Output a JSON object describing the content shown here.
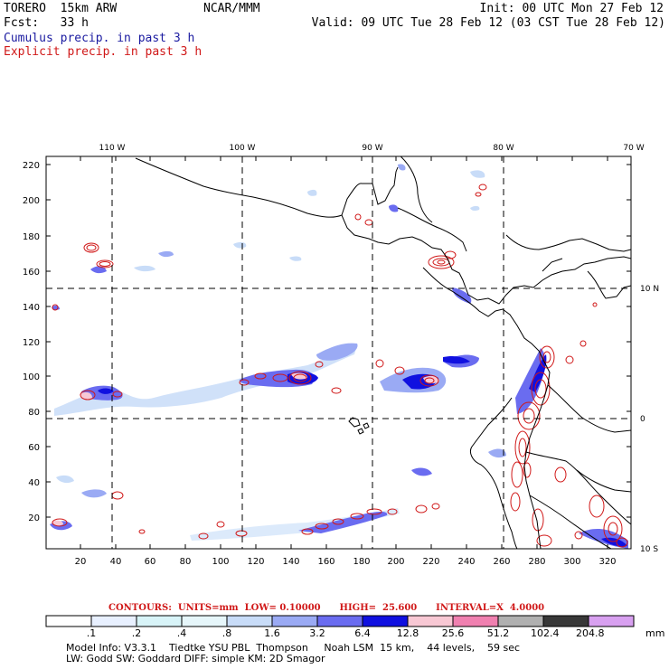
{
  "header": {
    "run_name": "TORERO  15km ARW",
    "org": "NCAR/MMM",
    "init": "Init: 00 UTC Mon 27 Feb 12",
    "fcst": "Fcst:   33 h",
    "valid": "Valid: 09 UTC Tue 28 Feb 12 (03 CST Tue 28 Feb 12)",
    "field1": "Cumulus precip. in past 3 h",
    "field2": "Explicit precip. in past 3 h"
  },
  "colors": {
    "cumulus": "#1a1aa0",
    "explicit": "#d01818",
    "coast": "#000000",
    "grid": "#000000"
  },
  "axes": {
    "x_ticks": [
      "20",
      "40",
      "60",
      "80",
      "100",
      "120",
      "140",
      "160",
      "180",
      "200",
      "220",
      "240",
      "260",
      "280",
      "300",
      "320"
    ],
    "y_ticks": [
      "20",
      "40",
      "60",
      "80",
      "100",
      "120",
      "140",
      "160",
      "180",
      "200",
      "220"
    ],
    "lon_labels": [
      "110 W",
      "100 W",
      "90 W",
      "80 W",
      "70 W"
    ],
    "lat_labels": [
      "10 N",
      "0",
      "10 S"
    ]
  },
  "contours": {
    "text": "CONTOURS:  UNITS=mm  LOW= 0.10000      HIGH=  25.600      INTERVAL=X  4.0000"
  },
  "colorbar": {
    "levels": [
      ".1",
      ".2",
      ".4",
      ".8",
      "1.6",
      "3.2",
      "6.4",
      "12.8",
      "25.6",
      "51.2",
      "102.4",
      "204.8"
    ],
    "colors": [
      "#ffffff",
      "#e8f0ff",
      "#d8f4f8",
      "#e6f6fa",
      "#c8dcf8",
      "#9aaaf4",
      "#6a6cf0",
      "#1010e0",
      "#f8c8d4",
      "#f080b0",
      "#b0b0b0",
      "#383838",
      "#d8a0f0"
    ],
    "unit": "mm"
  },
  "model_info": {
    "line1": "Model Info: V3.3.1    Tiedtke YSU PBL  Thompson     Noah LSM  15 km,    44 levels,    59 sec",
    "line2": "LW: Godd SW: Goddard DIFF: simple KM: 2D Smagor"
  }
}
